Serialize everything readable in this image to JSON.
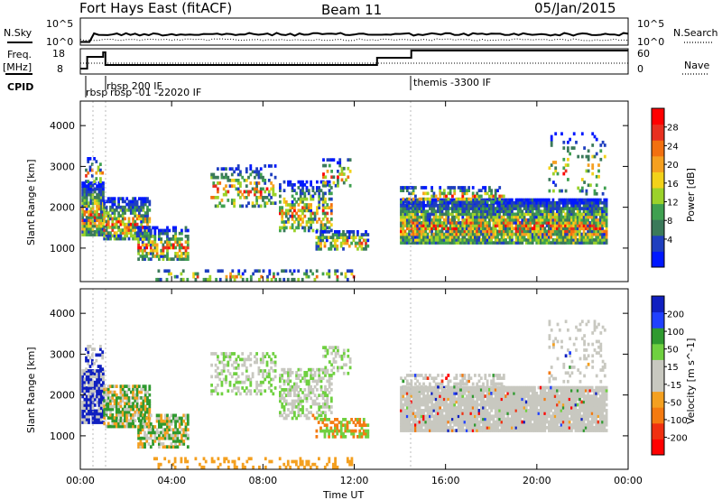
{
  "header": {
    "title": "Fort Hays East (fitACF)",
    "beam": "Beam 11",
    "date": "05/Jan/2015"
  },
  "strips": {
    "nsky_label": "N.Sky",
    "nsearch_label": "N.Search",
    "freq_label_1": "Freq.",
    "freq_label_2": "[MHz]",
    "nave_label": "Nave",
    "cpid_label": "CPID",
    "nsky_ticks": [
      "10^5",
      "10^0"
    ],
    "nsearch_ticks": [
      "10^5",
      "10^0"
    ],
    "freq_ticks": [
      "18",
      "8"
    ],
    "nave_ticks": [
      "60",
      "0"
    ],
    "cpid_annotations": [
      {
        "text": "rbsp 200 IF",
        "start": 1.1
      },
      {
        "text": "rbsp",
        "start": 0.3
      },
      {
        "text": "rbsp -01 -22020 IF",
        "start": 0.9
      },
      {
        "text": "themis -3300 IF",
        "start": 14.5
      }
    ]
  },
  "chart_data": [
    {
      "type": "heatmap",
      "ylabel": "Slant Range [km]",
      "xlabel": "Time UT",
      "x_ticks": [
        "00:00",
        "04:00",
        "08:00",
        "12:00",
        "16:00",
        "20:00",
        "00:00"
      ],
      "xlim": [
        0,
        24
      ],
      "y_ticks": [
        1000,
        2000,
        3000,
        4000
      ],
      "ylim": [
        180,
        4600
      ],
      "colorbar_label": "Power [dB]",
      "colorbar_ticks": [
        4,
        8,
        12,
        16,
        20,
        24,
        28
      ],
      "colorbar_colors": [
        "#0018ff",
        "#1f3fbf",
        "#3b7a5a",
        "#3fa050",
        "#9bd22a",
        "#f2d21a",
        "#f5a020",
        "#f27010",
        "#e83020",
        "#ff0000"
      ]
    },
    {
      "type": "heatmap",
      "ylabel": "Slant Range [km]",
      "xlabel": "Time UT",
      "x_ticks": [
        "00:00",
        "04:00",
        "08:00",
        "12:00",
        "16:00",
        "20:00",
        "00:00"
      ],
      "xlim": [
        0,
        24
      ],
      "y_ticks": [
        1000,
        2000,
        3000,
        4000
      ],
      "ylim": [
        180,
        4600
      ],
      "colorbar_label": "Velocity [m s^-1]",
      "colorbar_ticks": [
        200,
        100,
        50,
        15,
        -15,
        -50,
        -100,
        -200
      ],
      "colorbar_colors": [
        "#1020c0",
        "#2040ff",
        "#2f9a2f",
        "#6fd040",
        "#c8c8c0",
        "#c8c8c0",
        "#f4a020",
        "#f47a10",
        "#f03010",
        "#ff0000"
      ]
    }
  ],
  "footer": {
    "xlabel": "Time UT"
  }
}
